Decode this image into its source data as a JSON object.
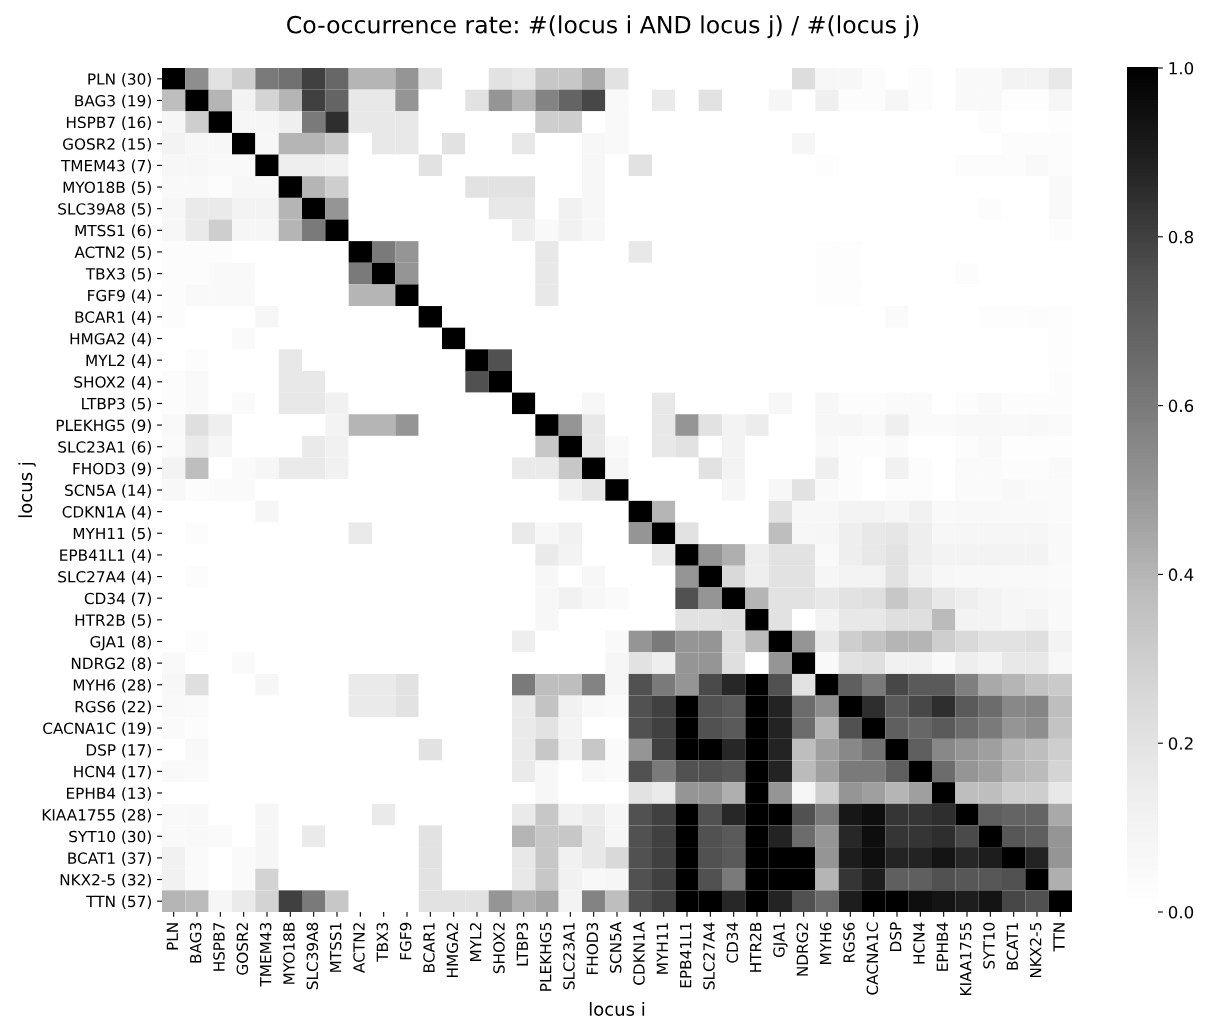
{
  "chart_data": {
    "type": "heatmap",
    "title": "Co-occurrence rate: #(locus i AND locus j) / #(locus j)",
    "xlabel": "locus i",
    "ylabel": "locus j",
    "categories": [
      "PLN",
      "BAG3",
      "HSPB7",
      "GOSR2",
      "TMEM43",
      "MYO18B",
      "SLC39A8",
      "MTSS1",
      "ACTN2",
      "TBX3",
      "FGF9",
      "BCAR1",
      "HMGA2",
      "MYL2",
      "SHOX2",
      "LTBP3",
      "PLEKHG5",
      "SLC23A1",
      "FHOD3",
      "SCN5A",
      "CDKN1A",
      "MYH11",
      "EPB41L1",
      "SLC27A4",
      "CD34",
      "HTR2B",
      "GJA1",
      "NDRG2",
      "MYH6",
      "RGS6",
      "CACNA1C",
      "DSP",
      "HCN4",
      "EPHB4",
      "KIAA1755",
      "SYT10",
      "BCAT1",
      "NKX2-5",
      "TTN"
    ],
    "y_categories": [
      "PLN (30)",
      "BAG3 (19)",
      "HSPB7 (16)",
      "GOSR2 (15)",
      "TMEM43 (7)",
      "MYO18B (5)",
      "SLC39A8 (5)",
      "MTSS1 (6)",
      "ACTN2 (5)",
      "TBX3 (5)",
      "FGF9 (4)",
      "BCAR1 (4)",
      "HMGA2 (4)",
      "MYL2 (4)",
      "SHOX2 (4)",
      "LTBP3 (5)",
      "PLEKHG5 (9)",
      "SLC23A1 (6)",
      "FHOD3 (9)",
      "SCN5A (14)",
      "CDKN1A (4)",
      "MYH11 (5)",
      "EPB41L1 (4)",
      "SLC27A4 (4)",
      "CD34 (7)",
      "HTR2B (5)",
      "GJA1 (8)",
      "NDRG2 (8)",
      "MYH6 (28)",
      "RGS6 (22)",
      "CACNA1C (19)",
      "DSP (17)",
      "HCN4 (17)",
      "EPHB4 (13)",
      "KIAA1755 (28)",
      "SYT10 (30)",
      "BCAT1 (37)",
      "NKX2-5 (32)",
      "TTN (57)"
    ],
    "clim": [
      0,
      1
    ],
    "cticks": [
      {
        "value": 0,
        "label": "0.0"
      },
      0.2,
      0.4,
      0.6,
      0.8,
      {
        "value": 1,
        "label": "1.0"
      }
    ],
    "cells": [
      [
        1,
        0.53,
        0.2,
        0.3,
        0.6,
        0.63,
        0.8,
        0.67,
        0.4,
        0.4,
        0.5,
        0.2,
        0,
        0,
        0.2,
        0.17,
        0.33,
        0.33,
        0.43,
        0.2,
        0,
        0,
        0,
        0,
        0,
        0,
        0,
        0.23,
        0.07,
        0.07,
        0.03,
        0,
        0.03,
        0,
        0.05,
        0.05,
        0.1,
        0.1,
        0.17
      ],
      [
        0.37,
        1,
        0.4,
        0.1,
        0.27,
        0.4,
        0.8,
        0.68,
        0.17,
        0.17,
        0.5,
        0,
        0,
        0.2,
        0.5,
        0.4,
        0.57,
        0.68,
        0.78,
        0.05,
        0,
        0.16,
        0,
        0.2,
        0,
        0,
        0.08,
        0,
        0.13,
        0.03,
        0.03,
        0.08,
        0.03,
        0,
        0.05,
        0.05,
        0.02,
        0.02,
        0.08
      ],
      [
        0.08,
        0.3,
        1,
        0.08,
        0.08,
        0.13,
        0.6,
        0.85,
        0.17,
        0.17,
        0.17,
        0,
        0,
        0,
        0,
        0,
        0.3,
        0.3,
        0,
        0.05,
        0,
        0,
        0,
        0,
        0,
        0,
        0,
        0,
        0,
        0,
        0,
        0,
        0,
        0,
        0,
        0.03,
        0,
        0,
        0.02
      ],
      [
        0.1,
        0.07,
        0.07,
        1,
        0.07,
        0.4,
        0.4,
        0.33,
        0,
        0.17,
        0.17,
        0,
        0.2,
        0,
        0,
        0.17,
        0,
        0,
        0.07,
        0.05,
        0,
        0,
        0,
        0,
        0,
        0,
        0,
        0.08,
        0,
        0,
        0,
        0,
        0,
        0,
        0,
        0,
        0.03,
        0.03,
        0.03
      ],
      [
        0.07,
        0.07,
        0.05,
        0.05,
        1,
        0.14,
        0.14,
        0.12,
        0,
        0,
        0,
        0.2,
        0,
        0,
        0,
        0,
        0,
        0,
        0.07,
        0,
        0.2,
        0,
        0,
        0,
        0,
        0,
        0,
        0,
        0.02,
        0,
        0,
        0,
        0,
        0,
        0.03,
        0.03,
        0.03,
        0.05,
        0.03
      ],
      [
        0.05,
        0.05,
        0.03,
        0.07,
        0.07,
        1,
        0.4,
        0.3,
        0,
        0,
        0,
        0,
        0,
        0.2,
        0.2,
        0.2,
        0,
        0,
        0.07,
        0,
        0,
        0,
        0,
        0,
        0,
        0,
        0,
        0,
        0,
        0,
        0,
        0,
        0,
        0,
        0,
        0,
        0,
        0,
        0.05
      ],
      [
        0.07,
        0.16,
        0.16,
        0.1,
        0.1,
        0.4,
        1,
        0.5,
        0,
        0,
        0,
        0,
        0,
        0,
        0.17,
        0.17,
        0,
        0.12,
        0.07,
        0,
        0,
        0,
        0,
        0,
        0,
        0,
        0,
        0,
        0,
        0,
        0,
        0,
        0,
        0,
        0,
        0.03,
        0,
        0,
        0.05
      ],
      [
        0.07,
        0.16,
        0.3,
        0.08,
        0.08,
        0.4,
        0.6,
        1,
        0,
        0,
        0,
        0,
        0,
        0,
        0,
        0.14,
        0.05,
        0.12,
        0.07,
        0,
        0,
        0,
        0,
        0,
        0,
        0,
        0,
        0,
        0,
        0,
        0,
        0,
        0,
        0,
        0,
        0,
        0,
        0,
        0.03
      ],
      [
        0.03,
        0.03,
        0.03,
        0,
        0,
        0,
        0,
        0,
        1,
        0.6,
        0.5,
        0,
        0,
        0,
        0,
        0,
        0.17,
        0,
        0,
        0,
        0.17,
        0,
        0,
        0,
        0,
        0,
        0,
        0,
        0.02,
        0.02,
        0,
        0,
        0,
        0,
        0,
        0,
        0,
        0,
        0
      ],
      [
        0.03,
        0.03,
        0.05,
        0.05,
        0,
        0,
        0,
        0,
        0.6,
        1,
        0.5,
        0,
        0,
        0,
        0,
        0,
        0.17,
        0,
        0,
        0,
        0,
        0,
        0,
        0,
        0,
        0,
        0,
        0,
        0.02,
        0.02,
        0,
        0,
        0,
        0,
        0.03,
        0,
        0,
        0,
        0
      ],
      [
        0.03,
        0.05,
        0.05,
        0.05,
        0,
        0,
        0,
        0,
        0.4,
        0.4,
        1,
        0,
        0,
        0,
        0,
        0,
        0.17,
        0,
        0,
        0,
        0,
        0,
        0,
        0,
        0,
        0,
        0,
        0,
        0.02,
        0.02,
        0,
        0,
        0,
        0,
        0,
        0,
        0,
        0,
        0
      ],
      [
        0.03,
        0,
        0,
        0,
        0.08,
        0,
        0,
        0,
        0,
        0,
        0,
        1,
        0,
        0,
        0,
        0,
        0,
        0,
        0,
        0,
        0,
        0,
        0,
        0,
        0,
        0,
        0,
        0,
        0,
        0,
        0,
        0.04,
        0,
        0,
        0,
        0.02,
        0.02,
        0.03,
        0.02
      ],
      [
        0,
        0,
        0,
        0.04,
        0,
        0,
        0,
        0,
        0,
        0,
        0,
        0,
        1,
        0,
        0,
        0,
        0,
        0,
        0,
        0,
        0,
        0,
        0,
        0,
        0,
        0,
        0,
        0,
        0,
        0,
        0,
        0,
        0,
        0,
        0,
        0,
        0,
        0,
        0.02
      ],
      [
        0,
        0.03,
        0,
        0,
        0,
        0.17,
        0,
        0,
        0,
        0,
        0,
        0,
        0,
        1,
        0.75,
        0,
        0,
        0,
        0,
        0,
        0,
        0,
        0,
        0,
        0,
        0,
        0,
        0,
        0,
        0,
        0,
        0,
        0,
        0,
        0,
        0,
        0,
        0,
        0.02
      ],
      [
        0.03,
        0.05,
        0,
        0,
        0,
        0.17,
        0.17,
        0,
        0,
        0,
        0,
        0,
        0,
        0.75,
        1,
        0,
        0,
        0,
        0,
        0,
        0,
        0,
        0,
        0,
        0,
        0,
        0,
        0,
        0,
        0,
        0,
        0,
        0,
        0,
        0,
        0,
        0,
        0,
        0.03
      ],
      [
        0.03,
        0.05,
        0,
        0.04,
        0,
        0.17,
        0.17,
        0.12,
        0,
        0,
        0,
        0,
        0,
        0,
        0,
        1,
        0,
        0,
        0.07,
        0,
        0,
        0.17,
        0,
        0,
        0,
        0,
        0.07,
        0,
        0.07,
        0.03,
        0.03,
        0.04,
        0.04,
        0,
        0.03,
        0.05,
        0.03,
        0.03,
        0.03
      ],
      [
        0.05,
        0.22,
        0.13,
        0,
        0,
        0,
        0,
        0.1,
        0.4,
        0.4,
        0.5,
        0,
        0,
        0,
        0,
        0,
        1,
        0.5,
        0.17,
        0,
        0,
        0.17,
        0.5,
        0.2,
        0.1,
        0.15,
        0,
        0,
        0.07,
        0.08,
        0.05,
        0.13,
        0.04,
        0.04,
        0.06,
        0.06,
        0.05,
        0.06,
        0.04
      ],
      [
        0.04,
        0.16,
        0.08,
        0,
        0,
        0,
        0.16,
        0.12,
        0,
        0,
        0,
        0,
        0,
        0,
        0,
        0,
        0.33,
        1,
        0.17,
        0.05,
        0,
        0.17,
        0.2,
        0,
        0.1,
        0,
        0,
        0,
        0.05,
        0.03,
        0.03,
        0.04,
        0,
        0,
        0.03,
        0.05,
        0.02,
        0.02,
        0.02
      ],
      [
        0.1,
        0.37,
        0,
        0.04,
        0.08,
        0.16,
        0.16,
        0.12,
        0,
        0,
        0,
        0,
        0,
        0,
        0,
        0.16,
        0.16,
        0.33,
        1,
        0.08,
        0,
        0,
        0,
        0.2,
        0.1,
        0,
        0,
        0,
        0.13,
        0.03,
        0,
        0.12,
        0.03,
        0,
        0.04,
        0.04,
        0.03,
        0.03,
        0.05
      ],
      [
        0.06,
        0.03,
        0.04,
        0.04,
        0,
        0,
        0,
        0,
        0,
        0,
        0,
        0,
        0,
        0,
        0,
        0,
        0,
        0.12,
        0.18,
        1,
        0,
        0,
        0,
        0,
        0.08,
        0,
        0.07,
        0.2,
        0.05,
        0.03,
        0,
        0.03,
        0.03,
        0,
        0.04,
        0.04,
        0.06,
        0.04,
        0.04
      ],
      [
        0,
        0,
        0,
        0,
        0.08,
        0,
        0,
        0,
        0,
        0,
        0,
        0,
        0,
        0,
        0,
        0,
        0,
        0,
        0,
        0,
        1,
        0.4,
        0,
        0,
        0,
        0,
        0.2,
        0.07,
        0.07,
        0.1,
        0.1,
        0.08,
        0.12,
        0.05,
        0.06,
        0.06,
        0.05,
        0.05,
        0.04
      ],
      [
        0,
        0.03,
        0,
        0,
        0,
        0,
        0,
        0,
        0.16,
        0,
        0,
        0,
        0,
        0,
        0,
        0.16,
        0.07,
        0.12,
        0,
        0,
        0.5,
        1,
        0.2,
        0,
        0,
        0,
        0.37,
        0.07,
        0.08,
        0.14,
        0.17,
        0.18,
        0.14,
        0.07,
        0.08,
        0.08,
        0.08,
        0.08,
        0.05
      ],
      [
        0,
        0,
        0,
        0,
        0,
        0,
        0,
        0,
        0,
        0,
        0,
        0,
        0,
        0,
        0,
        0,
        0.16,
        0.1,
        0,
        0,
        0,
        0.16,
        1,
        0.5,
        0.42,
        0.14,
        0.2,
        0.2,
        0.05,
        0.14,
        0.17,
        0.2,
        0.14,
        0.1,
        0.1,
        0.1,
        0.1,
        0.1,
        0.05
      ],
      [
        0,
        0.03,
        0,
        0,
        0,
        0,
        0,
        0,
        0,
        0,
        0,
        0,
        0,
        0,
        0,
        0,
        0.07,
        0,
        0.07,
        0,
        0,
        0,
        0.5,
        1,
        0.25,
        0.14,
        0.2,
        0.2,
        0.08,
        0.1,
        0.1,
        0.2,
        0.12,
        0.07,
        0.06,
        0.06,
        0.05,
        0.05,
        0.04
      ],
      [
        0,
        0,
        0,
        0,
        0,
        0,
        0,
        0,
        0,
        0,
        0,
        0,
        0,
        0,
        0,
        0,
        0.07,
        0.12,
        0.07,
        0.04,
        0,
        0,
        0.75,
        0.5,
        1,
        0.4,
        0.2,
        0.2,
        0.17,
        0.2,
        0.22,
        0.33,
        0.25,
        0.17,
        0.14,
        0.1,
        0.08,
        0.07,
        0.05
      ],
      [
        0,
        0,
        0,
        0,
        0,
        0,
        0,
        0,
        0,
        0,
        0,
        0,
        0,
        0,
        0,
        0,
        0.07,
        0,
        0,
        0,
        0,
        0,
        0.2,
        0.2,
        0.22,
        1,
        0.2,
        0,
        0.1,
        0.17,
        0.17,
        0.22,
        0.22,
        0.38,
        0.1,
        0.1,
        0.08,
        0.1,
        0.05
      ],
      [
        0,
        0.03,
        0,
        0,
        0,
        0,
        0,
        0,
        0,
        0,
        0,
        0,
        0,
        0,
        0,
        0.14,
        0,
        0,
        0,
        0.05,
        0.5,
        0.6,
        0.5,
        0.5,
        0.22,
        0.38,
        1,
        0.5,
        0.17,
        0.3,
        0.35,
        0.4,
        0.4,
        0.3,
        0.25,
        0.2,
        0.2,
        0.22,
        0.1
      ],
      [
        0.05,
        0,
        0,
        0.04,
        0,
        0,
        0,
        0,
        0,
        0,
        0,
        0,
        0,
        0,
        0,
        0,
        0,
        0,
        0,
        0.08,
        0.2,
        0.14,
        0.5,
        0.5,
        0.22,
        0,
        0.5,
        1,
        0.05,
        0.2,
        0.22,
        0.12,
        0.12,
        0.05,
        0.14,
        0.1,
        0.17,
        0.17,
        0.07
      ],
      [
        0.07,
        0.22,
        0,
        0,
        0.08,
        0,
        0,
        0,
        0.16,
        0.16,
        0.2,
        0,
        0,
        0,
        0,
        0.6,
        0.37,
        0.37,
        0.57,
        0.08,
        0.75,
        0.6,
        0.5,
        0.77,
        0.87,
        1,
        0.75,
        0.2,
        1,
        0.7,
        0.6,
        0.78,
        0.72,
        0.72,
        0.58,
        0.44,
        0.4,
        0.35,
        0.32
      ],
      [
        0.05,
        0.04,
        0,
        0,
        0,
        0,
        0,
        0,
        0.16,
        0.16,
        0.2,
        0,
        0,
        0,
        0,
        0.16,
        0.35,
        0.12,
        0.06,
        0.04,
        0.75,
        0.8,
        1,
        0.75,
        0.72,
        1,
        0.88,
        0.65,
        0.53,
        1,
        0.85,
        0.72,
        0.78,
        0.85,
        0.72,
        0.65,
        0.55,
        0.56,
        0.37
      ],
      [
        0.04,
        0.03,
        0,
        0,
        0,
        0,
        0,
        0,
        0,
        0,
        0,
        0,
        0,
        0,
        0,
        0.16,
        0.2,
        0.1,
        0,
        0,
        0.75,
        0.8,
        1,
        0.75,
        0.72,
        1,
        0.88,
        0.65,
        0.4,
        0.75,
        1,
        0.7,
        0.67,
        0.72,
        0.65,
        0.6,
        0.5,
        0.53,
        0.35
      ],
      [
        0,
        0.06,
        0,
        0,
        0,
        0,
        0,
        0,
        0,
        0,
        0,
        0.2,
        0,
        0,
        0,
        0.16,
        0.33,
        0.12,
        0.33,
        0.04,
        0.5,
        0.8,
        1,
        1,
        0.87,
        1,
        0.88,
        0.37,
        0.47,
        0.55,
        0.63,
        1,
        0.7,
        0.55,
        0.5,
        0.47,
        0.4,
        0.37,
        0.3
      ],
      [
        0.05,
        0.04,
        0,
        0,
        0,
        0,
        0,
        0,
        0,
        0,
        0,
        0,
        0,
        0,
        0,
        0.16,
        0.07,
        0,
        0.06,
        0.04,
        0.75,
        0.6,
        0.75,
        0.75,
        0.73,
        1,
        0.88,
        0.38,
        0.47,
        0.6,
        0.6,
        0.7,
        1,
        0.65,
        0.5,
        0.47,
        0.4,
        0.38,
        0.27
      ],
      [
        0,
        0,
        0,
        0,
        0,
        0,
        0,
        0,
        0,
        0,
        0,
        0,
        0,
        0,
        0,
        0,
        0.07,
        0,
        0,
        0,
        0.2,
        0.16,
        0.5,
        0.5,
        0.42,
        1,
        0.5,
        0.08,
        0.3,
        0.5,
        0.47,
        0.4,
        0.47,
        1,
        0.37,
        0.37,
        0.3,
        0.3,
        0.17
      ],
      [
        0.05,
        0.06,
        0,
        0,
        0.08,
        0,
        0,
        0,
        0,
        0.16,
        0,
        0,
        0,
        0,
        0,
        0.16,
        0.33,
        0.12,
        0.15,
        0.08,
        0.75,
        0.8,
        1,
        0.75,
        0.87,
        1,
        1,
        0.75,
        0.6,
        0.92,
        0.95,
        0.83,
        0.83,
        0.85,
        1,
        0.7,
        0.68,
        0.68,
        0.44
      ],
      [
        0.05,
        0.06,
        0.04,
        0,
        0.08,
        0,
        0.16,
        0,
        0,
        0,
        0,
        0.2,
        0,
        0,
        0,
        0.4,
        0.33,
        0.33,
        0.17,
        0.08,
        0.75,
        0.8,
        1,
        0.75,
        0.72,
        1,
        0.88,
        0.65,
        0.5,
        0.87,
        0.95,
        0.83,
        0.83,
        0.85,
        0.77,
        1,
        0.73,
        0.7,
        0.5
      ],
      [
        0.12,
        0.04,
        0,
        0.04,
        0.08,
        0,
        0,
        0,
        0,
        0,
        0,
        0.2,
        0,
        0,
        0,
        0.17,
        0.33,
        0.12,
        0.17,
        0.25,
        0.75,
        0.8,
        1,
        0.75,
        0.72,
        1,
        1,
        1,
        0.5,
        0.9,
        0.95,
        0.88,
        0.88,
        0.93,
        0.87,
        0.9,
        1,
        0.88,
        0.5
      ],
      [
        0.12,
        0.04,
        0,
        0.04,
        0.28,
        0,
        0,
        0,
        0,
        0,
        0,
        0.2,
        0,
        0,
        0,
        0.17,
        0.33,
        0.12,
        0.06,
        0.08,
        0.75,
        0.8,
        1,
        0.75,
        0.6,
        1,
        1,
        1,
        0.4,
        0.83,
        0.9,
        0.7,
        0.7,
        0.75,
        0.73,
        0.73,
        0.75,
        1,
        0.42
      ],
      [
        0.4,
        0.38,
        0.08,
        0.16,
        0.28,
        0.8,
        0.6,
        0.33,
        0,
        0,
        0,
        0.2,
        0.2,
        0.2,
        0.5,
        0.42,
        0.45,
        0.1,
        0.57,
        0.37,
        0.75,
        0.8,
        1,
        1,
        0.87,
        1,
        0.88,
        0.75,
        0.66,
        0.9,
        1,
        1,
        0.95,
        0.93,
        0.9,
        0.93,
        0.78,
        0.75,
        1
      ]
    ]
  }
}
